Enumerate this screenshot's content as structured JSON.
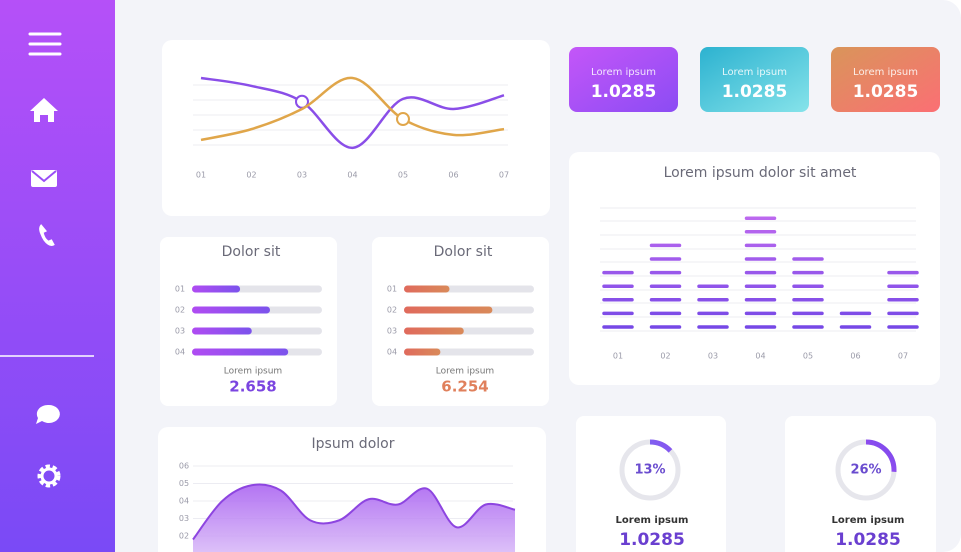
{
  "line_chart": {
    "type": "line",
    "categories": [
      "01",
      "02",
      "03",
      "04",
      "05",
      "06",
      "07"
    ],
    "ylim": [
      0,
      10
    ],
    "series": [
      {
        "color": "#8a4ee8",
        "values": [
          10,
          8.9,
          6.7,
          0.3,
          7.1,
          5.7,
          7.6
        ],
        "marker_index": 2
      },
      {
        "color": "#e0a64a",
        "values": [
          1.4,
          2.9,
          5.7,
          10,
          4.3,
          2.1,
          2.9
        ],
        "marker_index": 4
      }
    ]
  },
  "stat_cards": [
    {
      "label": "Lorem ipsum",
      "value": "1.0285",
      "colors": [
        "#c456f8",
        "#8b4cf4"
      ]
    },
    {
      "label": "Lorem ipsum",
      "value": "1.0285",
      "colors": [
        "#2cb2d0",
        "#86e3ea"
      ]
    },
    {
      "label": "Lorem ipsum",
      "value": "1.0285",
      "colors": [
        "#d9955a",
        "#fb6f74"
      ]
    }
  ],
  "progress_cards": [
    {
      "title": "Dolor sit",
      "categories": [
        "01",
        "02",
        "03",
        "04"
      ],
      "values": [
        37,
        60,
        46,
        74
      ],
      "xlim": [
        0,
        100
      ],
      "colors": [
        "#b04cf2",
        "#7b53ec"
      ],
      "footer_label": "Lorem ipsum",
      "footer_value": "2.658",
      "footer_color": "#7b45e0"
    },
    {
      "title": "Dolor sit",
      "categories": [
        "01",
        "02",
        "03",
        "04"
      ],
      "values": [
        35,
        68,
        46,
        28
      ],
      "xlim": [
        0,
        100
      ],
      "colors": [
        "#e06a5c",
        "#d98a5a"
      ],
      "footer_label": "Lorem ipsum",
      "footer_value": "6.254",
      "footer_color": "#e0805c"
    }
  ],
  "bar_chart": {
    "type": "bar",
    "title": "Lorem ipsum dolor sit amet",
    "categories": [
      "01",
      "02",
      "03",
      "04",
      "05",
      "06",
      "07"
    ],
    "values": [
      5,
      7,
      4,
      9,
      6,
      2,
      5
    ],
    "colors": [
      "#c46cf0",
      "#7447e6"
    ]
  },
  "area_chart": {
    "type": "area",
    "title": "Ipsum dolor",
    "ylim": [
      2,
      6
    ],
    "yticks": [
      {
        "value": 2,
        "label": "02"
      },
      {
        "value": 3,
        "label": "03"
      },
      {
        "value": 4,
        "label": "04"
      },
      {
        "value": 5,
        "label": "05"
      },
      {
        "value": 6,
        "label": "06"
      }
    ],
    "values": [
      1.8,
      4.0,
      4.9,
      4.6,
      2.9,
      2.9,
      4.1,
      3.8,
      4.7,
      2.5,
      3.8,
      3.5
    ],
    "color": "#a65cf0"
  },
  "donuts": [
    {
      "type": "pie",
      "value": 13,
      "value_label": "13%",
      "label": "Lorem ipsum",
      "number": "1.0285",
      "colors": [
        "#5a93ee",
        "#8c4ef0"
      ]
    },
    {
      "type": "pie",
      "value": 26,
      "value_label": "26%",
      "label": "Lorem ipsum",
      "number": "1.0285",
      "colors": [
        "#c45af5",
        "#7a48ec"
      ]
    }
  ]
}
